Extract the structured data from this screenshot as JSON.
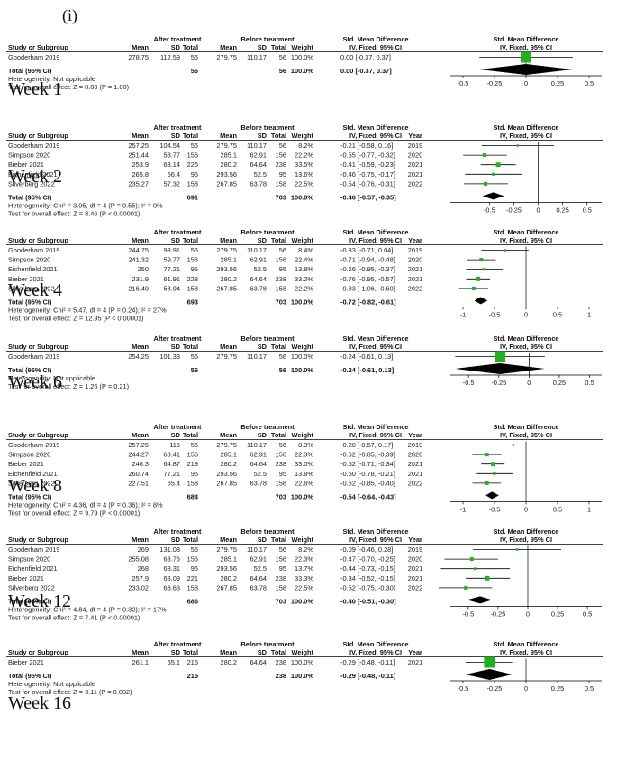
{
  "panel_label": "(i)",
  "headers": {
    "after": "After treatment",
    "before": "Before treatment",
    "smd": "Std. Mean Difference",
    "method": "IV, Fixed, 95% CI",
    "study": "Study or Subgroup",
    "mean": "Mean",
    "sd": "SD",
    "total": "Total",
    "weight": "Weight",
    "year": "Year",
    "total_row": "Total (95% CI)"
  },
  "colors": {
    "square": "#22b022",
    "diamond": "#000000",
    "line": "#000000"
  },
  "chart_data": [
    {
      "type": "forest",
      "label": "Week 1",
      "show_year": false,
      "xlim": [
        -0.6,
        0.6
      ],
      "ticks": [
        "-0.5",
        "-0.25",
        "0",
        "0.25",
        "0.5"
      ],
      "tick_values": [
        -0.5,
        -0.25,
        0,
        0.25,
        0.5
      ],
      "studies": [
        {
          "name": "Gooderham 2019",
          "mean_a": "278.75",
          "sd_a": "112.59",
          "n_a": "56",
          "mean_b": "279.75",
          "sd_b": "110.17",
          "n_b": "56",
          "weight": "100.0%",
          "ci_text": "0.00 [-0.37, 0.37]",
          "year": "",
          "est": 0.0,
          "lo": -0.37,
          "hi": 0.37,
          "w": 100.0
        }
      ],
      "total": {
        "n_a": "56",
        "n_b": "56",
        "weight": "100.0%",
        "ci_text": "0.00 [-0.37, 0.37]",
        "est": 0.0,
        "lo": -0.37,
        "hi": 0.37
      },
      "heterogeneity": "Heterogeneity: Not applicable",
      "overall": "Test for overall effect: Z = 0.00 (P = 1.00)"
    },
    {
      "type": "forest",
      "label": "Week 2",
      "show_year": true,
      "xlim": [
        -0.9,
        0.65
      ],
      "ticks": [
        "-0.5",
        "-0.25",
        "0",
        "0.25",
        "0.5"
      ],
      "tick_values": [
        -0.5,
        -0.25,
        0,
        0.25,
        0.5
      ],
      "studies": [
        {
          "name": "Gooderham 2019",
          "mean_a": "257.25",
          "sd_a": "104.54",
          "n_a": "56",
          "mean_b": "279.75",
          "sd_b": "110.17",
          "n_b": "56",
          "weight": "8.2%",
          "ci_text": "-0.21 [-0.58, 0.16]",
          "year": "2019",
          "est": -0.21,
          "lo": -0.58,
          "hi": 0.16,
          "w": 8.2
        },
        {
          "name": "Simpson 2020",
          "mean_a": "251.44",
          "sd_a": "58.77",
          "n_a": "156",
          "mean_b": "285.1",
          "sd_b": "62.91",
          "n_b": "156",
          "weight": "22.2%",
          "ci_text": "-0.55 [-0.77, -0.32]",
          "year": "2020",
          "est": -0.55,
          "lo": -0.77,
          "hi": -0.32,
          "w": 22.2
        },
        {
          "name": "Bieber 2021",
          "mean_a": "253.9",
          "sd_a": "63.14",
          "n_a": "226",
          "mean_b": "280.2",
          "sd_b": "64.64",
          "n_b": "238",
          "weight": "33.5%",
          "ci_text": "-0.41 [-0.59, -0.23]",
          "year": "2021",
          "est": -0.41,
          "lo": -0.59,
          "hi": -0.23,
          "w": 33.5
        },
        {
          "name": "Eichenfield 2021",
          "mean_a": "265.8",
          "sd_a": "66.4",
          "n_a": "95",
          "mean_b": "293.56",
          "sd_b": "52.5",
          "n_b": "95",
          "weight": "13.6%",
          "ci_text": "-0.46 [-0.75, -0.17]",
          "year": "2021",
          "est": -0.46,
          "lo": -0.75,
          "hi": -0.17,
          "w": 13.6
        },
        {
          "name": "Silverberg 2022",
          "mean_a": "235.27",
          "sd_a": "57.32",
          "n_a": "158",
          "mean_b": "267.85",
          "sd_b": "63.78",
          "n_b": "158",
          "weight": "22.5%",
          "ci_text": "-0.54 [-0.76, -0.31]",
          "year": "2022",
          "est": -0.54,
          "lo": -0.76,
          "hi": -0.31,
          "w": 22.5
        }
      ],
      "total": {
        "n_a": "691",
        "n_b": "703",
        "weight": "100.0%",
        "ci_text": "-0.46 [-0.57, -0.35]",
        "est": -0.46,
        "lo": -0.57,
        "hi": -0.35
      },
      "heterogeneity": "Heterogeneity: Chi² = 3.05, df = 4 (P = 0.55); I² = 0%",
      "overall": "Test for overall effect: Z = 8.46 (P < 0.00001)"
    },
    {
      "type": "forest",
      "label": "Week 4",
      "show_year": true,
      "xlim": [
        -1.2,
        1.2
      ],
      "ticks": [
        "-1",
        "-0.5",
        "0",
        "0.5",
        "1"
      ],
      "tick_values": [
        -1,
        -0.5,
        0,
        0.5,
        1
      ],
      "studies": [
        {
          "name": "Gooderham 2019",
          "mean_a": "244.75",
          "sd_a": "98.91",
          "n_a": "56",
          "mean_b": "279.75",
          "sd_b": "110.17",
          "n_b": "56",
          "weight": "8.4%",
          "ci_text": "-0.33 [-0.71, 0.04]",
          "year": "2019",
          "est": -0.33,
          "lo": -0.71,
          "hi": 0.04,
          "w": 8.4
        },
        {
          "name": "Simpson 2020",
          "mean_a": "241.32",
          "sd_a": "59.77",
          "n_a": "156",
          "mean_b": "285.1",
          "sd_b": "62.91",
          "n_b": "156",
          "weight": "22.4%",
          "ci_text": "-0.71 [-0.94, -0.48]",
          "year": "2020",
          "est": -0.71,
          "lo": -0.94,
          "hi": -0.48,
          "w": 22.4
        },
        {
          "name": "Eichenfield 2021",
          "mean_a": "250",
          "sd_a": "77.21",
          "n_a": "95",
          "mean_b": "293.56",
          "sd_b": "52.5",
          "n_b": "95",
          "weight": "13.8%",
          "ci_text": "-0.66 [-0.95, -0.37]",
          "year": "2021",
          "est": -0.66,
          "lo": -0.95,
          "hi": -0.37,
          "w": 13.8
        },
        {
          "name": "Bieber 2021",
          "mean_a": "231.9",
          "sd_a": "61.91",
          "n_a": "228",
          "mean_b": "280.2",
          "sd_b": "64.64",
          "n_b": "238",
          "weight": "33.2%",
          "ci_text": "-0.76 [-0.95, -0.57]",
          "year": "2021",
          "est": -0.76,
          "lo": -0.95,
          "hi": -0.57,
          "w": 33.2
        },
        {
          "name": "Silverberg 2022",
          "mean_a": "216.49",
          "sd_a": "58.94",
          "n_a": "158",
          "mean_b": "267.85",
          "sd_b": "63.78",
          "n_b": "158",
          "weight": "22.2%",
          "ci_text": "-0.83 [-1.06, -0.60]",
          "year": "2022",
          "est": -0.83,
          "lo": -1.06,
          "hi": -0.6,
          "w": 22.2
        }
      ],
      "total": {
        "n_a": "693",
        "n_b": "703",
        "weight": "100.0%",
        "ci_text": "-0.72 [-0.82, -0.61]",
        "est": -0.72,
        "lo": -0.82,
        "hi": -0.61
      },
      "heterogeneity": "Heterogeneity: Chi² = 5.47, df = 4 (P = 0.24); I² = 27%",
      "overall": "Test for overall effect: Z = 12.95 (P < 0.00001)"
    },
    {
      "type": "forest",
      "label": "Week 6",
      "show_year": false,
      "xlim": [
        -0.65,
        0.6
      ],
      "ticks": [
        "-0.5",
        "-0.25",
        "0",
        "0.25",
        "0.5"
      ],
      "tick_values": [
        -0.5,
        -0.25,
        0,
        0.25,
        0.5
      ],
      "studies": [
        {
          "name": "Gooderham 2019",
          "mean_a": "254.25",
          "sd_a": "101.33",
          "n_a": "56",
          "mean_b": "279.75",
          "sd_b": "110.17",
          "n_b": "56",
          "weight": "100.0%",
          "ci_text": "-0.24 [-0.61, 0.13]",
          "year": "",
          "est": -0.24,
          "lo": -0.61,
          "hi": 0.13,
          "w": 100.0
        }
      ],
      "total": {
        "n_a": "56",
        "n_b": "56",
        "weight": "100.0%",
        "ci_text": "-0.24 [-0.61, 0.13]",
        "est": -0.24,
        "lo": -0.61,
        "hi": 0.13
      },
      "heterogeneity": "Heterogeneity: Not applicable",
      "overall": "Test for overall effect: Z = 1.26 (P = 0.21)"
    },
    {
      "type": "forest",
      "label": "Week 8",
      "show_year": true,
      "xlim": [
        -1.2,
        1.2
      ],
      "ticks": [
        "-1",
        "-0.5",
        "0",
        "0.5",
        "1"
      ],
      "tick_values": [
        -1,
        -0.5,
        0,
        0.5,
        1
      ],
      "studies": [
        {
          "name": "Gooderham 2019",
          "mean_a": "257.25",
          "sd_a": "115",
          "n_a": "56",
          "mean_b": "279.75",
          "sd_b": "110.17",
          "n_b": "56",
          "weight": "8.3%",
          "ci_text": "-0.20 [-0.57, 0.17]",
          "year": "2019",
          "est": -0.2,
          "lo": -0.57,
          "hi": 0.17,
          "w": 8.3
        },
        {
          "name": "Simpson 2020",
          "mean_a": "244.27",
          "sd_a": "68.41",
          "n_a": "156",
          "mean_b": "285.1",
          "sd_b": "62.91",
          "n_b": "156",
          "weight": "22.3%",
          "ci_text": "-0.62 [-0.85, -0.39]",
          "year": "2020",
          "est": -0.62,
          "lo": -0.85,
          "hi": -0.39,
          "w": 22.3
        },
        {
          "name": "Bieber 2021",
          "mean_a": "246.3",
          "sd_a": "64.87",
          "n_a": "219",
          "mean_b": "280.2",
          "sd_b": "64.64",
          "n_b": "238",
          "weight": "33.0%",
          "ci_text": "-0.52 [-0.71, -0.34]",
          "year": "2021",
          "est": -0.52,
          "lo": -0.71,
          "hi": -0.34,
          "w": 33.0
        },
        {
          "name": "Eichenfield 2021",
          "mean_a": "260.74",
          "sd_a": "77.21",
          "n_a": "95",
          "mean_b": "293.56",
          "sd_b": "52.5",
          "n_b": "95",
          "weight": "13.8%",
          "ci_text": "-0.50 [-0.78, -0.21]",
          "year": "2021",
          "est": -0.5,
          "lo": -0.78,
          "hi": -0.21,
          "w": 13.8
        },
        {
          "name": "Silverberg 2022",
          "mean_a": "227.51",
          "sd_a": "65.4",
          "n_a": "158",
          "mean_b": "267.85",
          "sd_b": "63.78",
          "n_b": "158",
          "weight": "22.6%",
          "ci_text": "-0.62 [-0.85, -0.40]",
          "year": "2022",
          "est": -0.62,
          "lo": -0.85,
          "hi": -0.4,
          "w": 22.6
        }
      ],
      "total": {
        "n_a": "684",
        "n_b": "703",
        "weight": "100.0%",
        "ci_text": "-0.54 [-0.64, -0.43]",
        "est": -0.54,
        "lo": -0.64,
        "hi": -0.43
      },
      "heterogeneity": "Heterogeneity: Chi² = 4.36, df = 4 (P = 0.36); I² = 8%",
      "overall": "Test for overall effect: Z = 9.79 (P < 0.00001)"
    },
    {
      "type": "forest",
      "label": "Week 12",
      "show_year": true,
      "xlim": [
        -0.65,
        0.62
      ],
      "ticks": [
        "-0.5",
        "-0.25",
        "0",
        "0.25",
        "0.5"
      ],
      "tick_values": [
        -0.5,
        -0.25,
        0,
        0.25,
        0.5
      ],
      "studies": [
        {
          "name": "Gooderham 2019",
          "mean_a": "269",
          "sd_a": "131.08",
          "n_a": "56",
          "mean_b": "279.75",
          "sd_b": "110.17",
          "n_b": "56",
          "weight": "8.2%",
          "ci_text": "-0.09 [-0.46, 0.28]",
          "year": "2019",
          "est": -0.09,
          "lo": -0.46,
          "hi": 0.28,
          "w": 8.2
        },
        {
          "name": "Simpson 2020",
          "mean_a": "255.08",
          "sd_a": "63.76",
          "n_a": "156",
          "mean_b": "285.1",
          "sd_b": "62.91",
          "n_b": "156",
          "weight": "22.3%",
          "ci_text": "-0.47 [-0.70, -0.25]",
          "year": "2020",
          "est": -0.47,
          "lo": -0.7,
          "hi": -0.25,
          "w": 22.3
        },
        {
          "name": "Eichenfield 2021",
          "mean_a": "268",
          "sd_a": "63.31",
          "n_a": "95",
          "mean_b": "293.56",
          "sd_b": "52.5",
          "n_b": "95",
          "weight": "13.7%",
          "ci_text": "-0.44 [-0.73, -0.15]",
          "year": "2021",
          "est": -0.44,
          "lo": -0.73,
          "hi": -0.15,
          "w": 13.7
        },
        {
          "name": "Bieber 2021",
          "mean_a": "257.9",
          "sd_a": "68.09",
          "n_a": "221",
          "mean_b": "280.2",
          "sd_b": "64.64",
          "n_b": "238",
          "weight": "33.3%",
          "ci_text": "-0.34 [-0.52, -0.15]",
          "year": "2021",
          "est": -0.34,
          "lo": -0.52,
          "hi": -0.15,
          "w": 33.3
        },
        {
          "name": "Silverberg 2022",
          "mean_a": "233.02",
          "sd_a": "68.63",
          "n_a": "158",
          "mean_b": "267.85",
          "sd_b": "63.78",
          "n_b": "158",
          "weight": "22.5%",
          "ci_text": "-0.52 [-0.75, -0.30]",
          "year": "2022",
          "est": -0.52,
          "lo": -0.75,
          "hi": -0.3,
          "w": 22.5
        }
      ],
      "total": {
        "n_a": "686",
        "n_b": "703",
        "weight": "100.0%",
        "ci_text": "-0.40 [-0.51, -0.30]",
        "est": -0.4,
        "lo": -0.51,
        "hi": -0.3
      },
      "heterogeneity": "Heterogeneity: Chi² = 4.84, df = 4 (P = 0.30); I² = 17%",
      "overall": "Test for overall effect: Z = 7.41 (P < 0.00001)"
    },
    {
      "type": "forest",
      "label": "Week 16",
      "show_year": true,
      "xlim": [
        -0.6,
        0.6
      ],
      "ticks": [
        "-0.5",
        "-0.25",
        "0",
        "0.25",
        "0.5"
      ],
      "tick_values": [
        -0.5,
        -0.25,
        0,
        0.25,
        0.5
      ],
      "studies": [
        {
          "name": "Bieber 2021",
          "mean_a": "261.1",
          "sd_a": "65.1",
          "n_a": "215",
          "mean_b": "280.2",
          "sd_b": "64.64",
          "n_b": "238",
          "weight": "100.0%",
          "ci_text": "-0.29 [-0.48, -0.11]",
          "year": "2021",
          "est": -0.29,
          "lo": -0.48,
          "hi": -0.11,
          "w": 100.0
        }
      ],
      "total": {
        "n_a": "215",
        "n_b": "238",
        "weight": "100.0%",
        "ci_text": "-0.29 [-0.48, -0.11]",
        "est": -0.29,
        "lo": -0.48,
        "hi": -0.11
      },
      "heterogeneity": "Heterogeneity: Not applicable",
      "overall": "Test for overall effect: Z = 3.11 (P = 0.002)"
    }
  ]
}
